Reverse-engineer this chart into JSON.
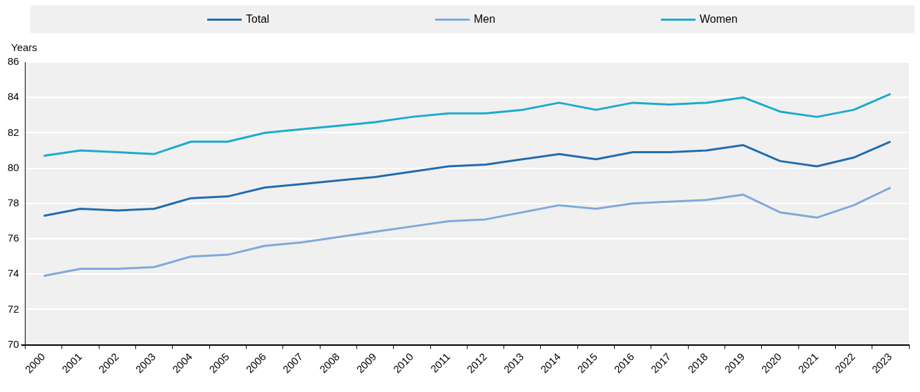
{
  "chart_data": {
    "type": "line",
    "ylabel": "Years",
    "categories": [
      "2000",
      "2001",
      "2002",
      "2003",
      "2004",
      "2005",
      "2006",
      "2007",
      "2008",
      "2009",
      "2010",
      "2011",
      "2012",
      "2013",
      "2014",
      "2015",
      "2016",
      "2017",
      "2018",
      "2019",
      "2020",
      "2021",
      "2022",
      "2023"
    ],
    "series": [
      {
        "name": "Total",
        "color": "#1f6cb0",
        "values": [
          77.3,
          77.7,
          77.6,
          77.7,
          78.3,
          78.4,
          78.9,
          79.1,
          79.3,
          79.5,
          79.8,
          80.1,
          80.2,
          80.5,
          80.8,
          80.5,
          80.9,
          80.9,
          81.0,
          81.3,
          80.4,
          80.1,
          80.6,
          81.5
        ]
      },
      {
        "name": "Men",
        "color": "#7fa8dc",
        "values": [
          73.9,
          74.3,
          74.3,
          74.4,
          75.0,
          75.1,
          75.6,
          75.8,
          76.1,
          76.4,
          76.7,
          77.0,
          77.1,
          77.5,
          77.9,
          77.7,
          78.0,
          78.1,
          78.2,
          78.5,
          77.5,
          77.2,
          77.9,
          78.9
        ]
      },
      {
        "name": "Women",
        "color": "#1aaacf",
        "values": [
          80.7,
          81.0,
          80.9,
          80.8,
          81.5,
          81.5,
          82.0,
          82.2,
          82.4,
          82.6,
          82.9,
          83.1,
          83.1,
          83.3,
          83.7,
          83.3,
          83.7,
          83.6,
          83.7,
          84.0,
          83.2,
          82.9,
          83.3,
          84.2
        ]
      }
    ],
    "ylim": [
      70,
      86
    ],
    "yticks": [
      70,
      72,
      74,
      76,
      78,
      80,
      82,
      84,
      86
    ],
    "grid": "y",
    "legend": "top",
    "marker": "none",
    "line_style": "solid"
  }
}
